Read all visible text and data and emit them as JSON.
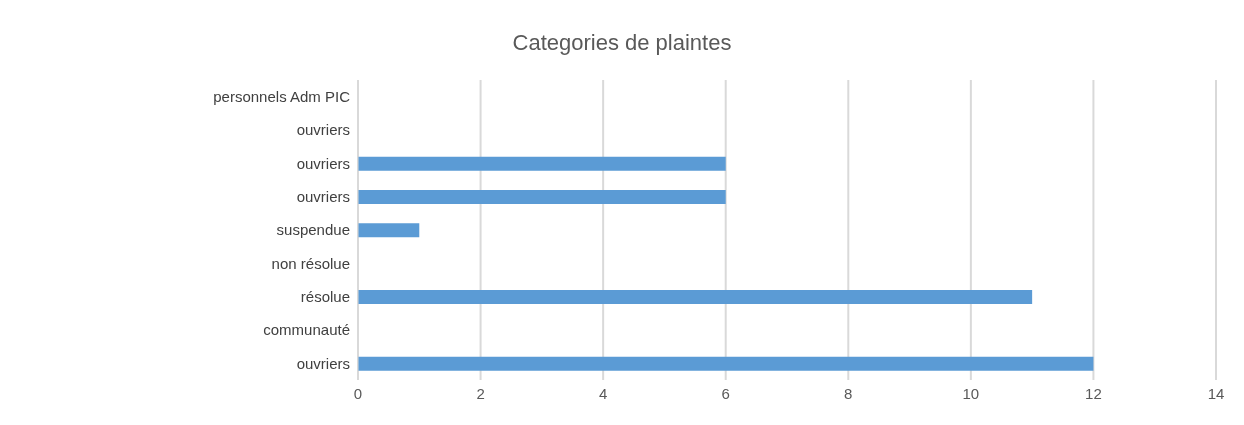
{
  "chart_data": {
    "type": "bar",
    "orientation": "horizontal",
    "title": "Categories de plaintes",
    "categories": [
      "personnels Adm PIC",
      "ouvriers",
      "ouvriers",
      "ouvriers",
      "suspendue",
      "non résolue",
      "résolue",
      "communauté",
      "ouvriers"
    ],
    "values": [
      0,
      0,
      6,
      6,
      1,
      0,
      11,
      0,
      12
    ],
    "color": "#5b9bd5",
    "xlim": [
      0,
      14
    ],
    "xticks": [
      0,
      2,
      4,
      6,
      8,
      10,
      12,
      14
    ],
    "grid": "x"
  }
}
